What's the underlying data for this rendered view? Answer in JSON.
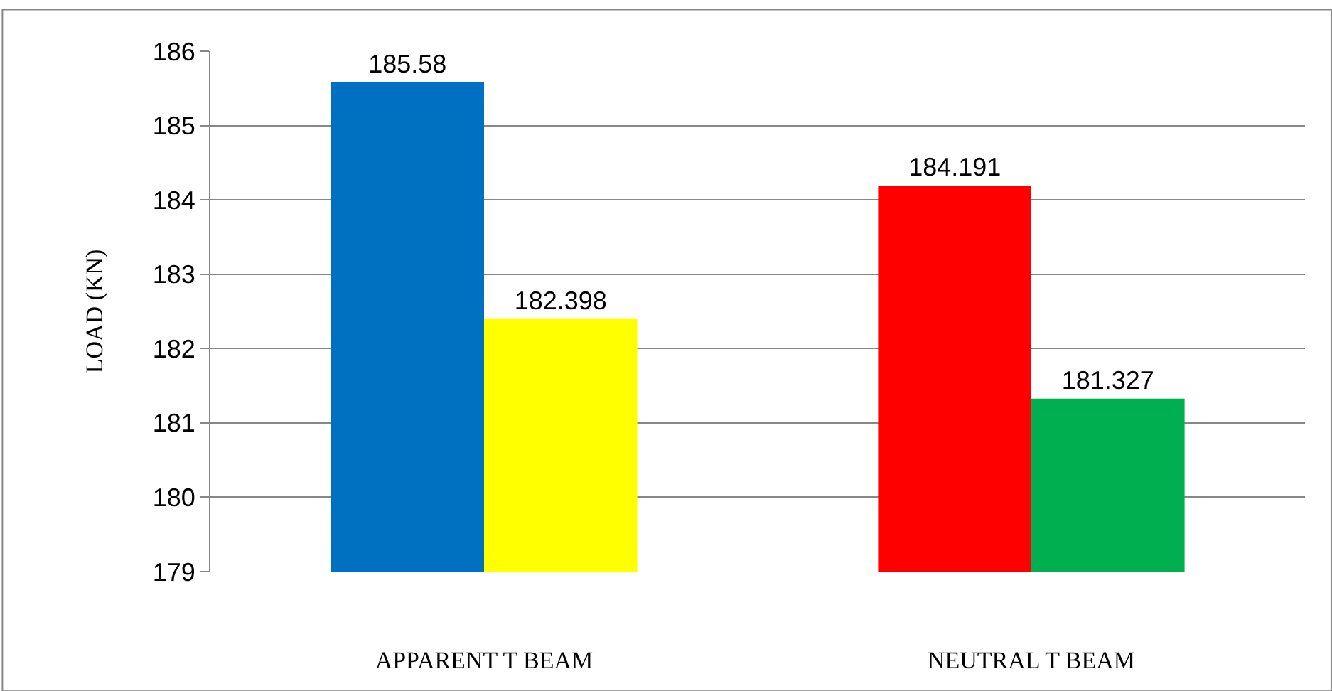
{
  "chart_data": {
    "type": "bar",
    "ylabel": "LOAD (KN)",
    "categories": [
      "APPARENT T BEAM",
      "NEUTRAL T BEAM"
    ],
    "series": [
      {
        "colors": [
          "#0070c0",
          "#ff0000"
        ],
        "values": [
          185.58,
          184.191
        ]
      },
      {
        "colors": [
          "#ffff00",
          "#00b050"
        ],
        "values": [
          182.398,
          181.327
        ]
      }
    ],
    "ylim": [
      179,
      186
    ],
    "yticks": [
      179,
      180,
      181,
      182,
      183,
      184,
      185,
      186
    ],
    "grid": "y",
    "data_labels": true
  }
}
